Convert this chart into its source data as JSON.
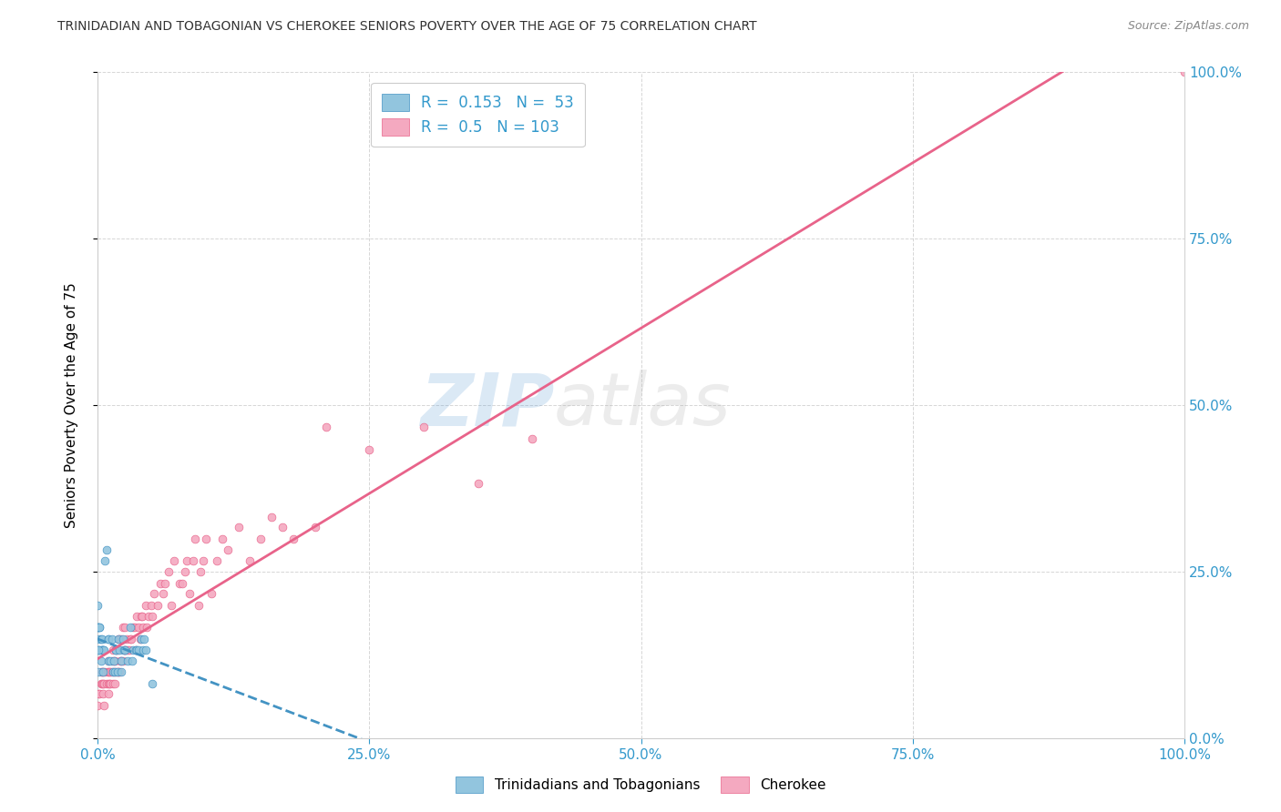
{
  "title": "TRINIDADIAN AND TOBAGONIAN VS CHEROKEE SENIORS POVERTY OVER THE AGE OF 75 CORRELATION CHART",
  "source": "Source: ZipAtlas.com",
  "ylabel": "Seniors Poverty Over the Age of 75",
  "r_blue": 0.153,
  "n_blue": 53,
  "r_pink": 0.5,
  "n_pink": 103,
  "blue_color": "#92c5de",
  "pink_color": "#f4a9c0",
  "blue_line_color": "#4393c3",
  "pink_line_color": "#e8638a",
  "axis_label_color": "#3399cc",
  "watermark_color": "#d0dce8",
  "blue_scatter_x": [
    0.0,
    0.0,
    0.0,
    0.001,
    0.001,
    0.001,
    0.002,
    0.002,
    0.002,
    0.002,
    0.003,
    0.003,
    0.003,
    0.004,
    0.004,
    0.004,
    0.005,
    0.005,
    0.005,
    0.006,
    0.007,
    0.008,
    0.01,
    0.01,
    0.01,
    0.012,
    0.013,
    0.014,
    0.015,
    0.016,
    0.017,
    0.017,
    0.018,
    0.019,
    0.02,
    0.022,
    0.022,
    0.023,
    0.024,
    0.025,
    0.028,
    0.03,
    0.032,
    0.033,
    0.035,
    0.036,
    0.038,
    0.04,
    0.042,
    0.043,
    0.044,
    0.05,
    0.001
  ],
  "blue_scatter_y": [
    0.167,
    0.167,
    0.2,
    0.167,
    0.1,
    0.133,
    0.15,
    0.133,
    0.167,
    0.167,
    0.117,
    0.15,
    0.133,
    0.15,
    0.133,
    0.133,
    0.133,
    0.133,
    0.1,
    0.133,
    0.267,
    0.283,
    0.15,
    0.15,
    0.117,
    0.117,
    0.15,
    0.1,
    0.117,
    0.1,
    0.133,
    0.133,
    0.1,
    0.15,
    0.133,
    0.1,
    0.117,
    0.15,
    0.133,
    0.133,
    0.117,
    0.167,
    0.117,
    0.133,
    0.133,
    0.133,
    0.133,
    0.15,
    0.133,
    0.15,
    0.133,
    0.083,
    0.133
  ],
  "pink_scatter_x": [
    0.0,
    0.001,
    0.002,
    0.003,
    0.003,
    0.004,
    0.004,
    0.005,
    0.005,
    0.005,
    0.006,
    0.006,
    0.007,
    0.008,
    0.009,
    0.01,
    0.01,
    0.01,
    0.01,
    0.011,
    0.011,
    0.012,
    0.012,
    0.013,
    0.013,
    0.014,
    0.014,
    0.015,
    0.015,
    0.016,
    0.016,
    0.017,
    0.017,
    0.018,
    0.018,
    0.019,
    0.019,
    0.02,
    0.02,
    0.021,
    0.022,
    0.022,
    0.023,
    0.023,
    0.024,
    0.025,
    0.025,
    0.026,
    0.027,
    0.028,
    0.029,
    0.03,
    0.031,
    0.033,
    0.034,
    0.035,
    0.036,
    0.038,
    0.039,
    0.04,
    0.041,
    0.042,
    0.044,
    0.045,
    0.047,
    0.049,
    0.05,
    0.052,
    0.055,
    0.058,
    0.06,
    0.062,
    0.065,
    0.068,
    0.07,
    0.075,
    0.078,
    0.08,
    0.082,
    0.085,
    0.088,
    0.09,
    0.093,
    0.095,
    0.097,
    0.1,
    0.105,
    0.11,
    0.115,
    0.12,
    0.13,
    0.14,
    0.15,
    0.16,
    0.17,
    0.18,
    0.2,
    0.21,
    0.25,
    0.3,
    0.35,
    0.4,
    1.0
  ],
  "pink_scatter_y": [
    0.05,
    0.067,
    0.067,
    0.083,
    0.1,
    0.083,
    0.1,
    0.067,
    0.083,
    0.1,
    0.05,
    0.083,
    0.1,
    0.083,
    0.1,
    0.067,
    0.083,
    0.1,
    0.117,
    0.083,
    0.1,
    0.083,
    0.1,
    0.1,
    0.117,
    0.083,
    0.133,
    0.1,
    0.117,
    0.083,
    0.117,
    0.1,
    0.133,
    0.1,
    0.133,
    0.1,
    0.15,
    0.1,
    0.15,
    0.117,
    0.117,
    0.15,
    0.117,
    0.167,
    0.133,
    0.133,
    0.167,
    0.133,
    0.15,
    0.133,
    0.133,
    0.15,
    0.15,
    0.167,
    0.167,
    0.133,
    0.183,
    0.167,
    0.15,
    0.183,
    0.183,
    0.167,
    0.2,
    0.167,
    0.183,
    0.2,
    0.183,
    0.217,
    0.2,
    0.233,
    0.217,
    0.233,
    0.25,
    0.2,
    0.267,
    0.233,
    0.233,
    0.25,
    0.267,
    0.217,
    0.267,
    0.3,
    0.2,
    0.25,
    0.267,
    0.3,
    0.217,
    0.267,
    0.3,
    0.283,
    0.317,
    0.267,
    0.3,
    0.333,
    0.317,
    0.3,
    0.317,
    0.467,
    0.433,
    0.467,
    0.383,
    0.45,
    1.0
  ],
  "xlim": [
    0.0,
    1.0
  ],
  "ylim": [
    0.0,
    1.0
  ],
  "xticks": [
    0.0,
    0.25,
    0.5,
    0.75,
    1.0
  ],
  "yticks": [
    0.0,
    0.25,
    0.5,
    0.75,
    1.0
  ],
  "xtick_labels": [
    "0.0%",
    "25.0%",
    "50.0%",
    "75.0%",
    "100.0%"
  ],
  "ytick_labels": [
    "0.0%",
    "25.0%",
    "50.0%",
    "75.0%",
    "100.0%"
  ]
}
